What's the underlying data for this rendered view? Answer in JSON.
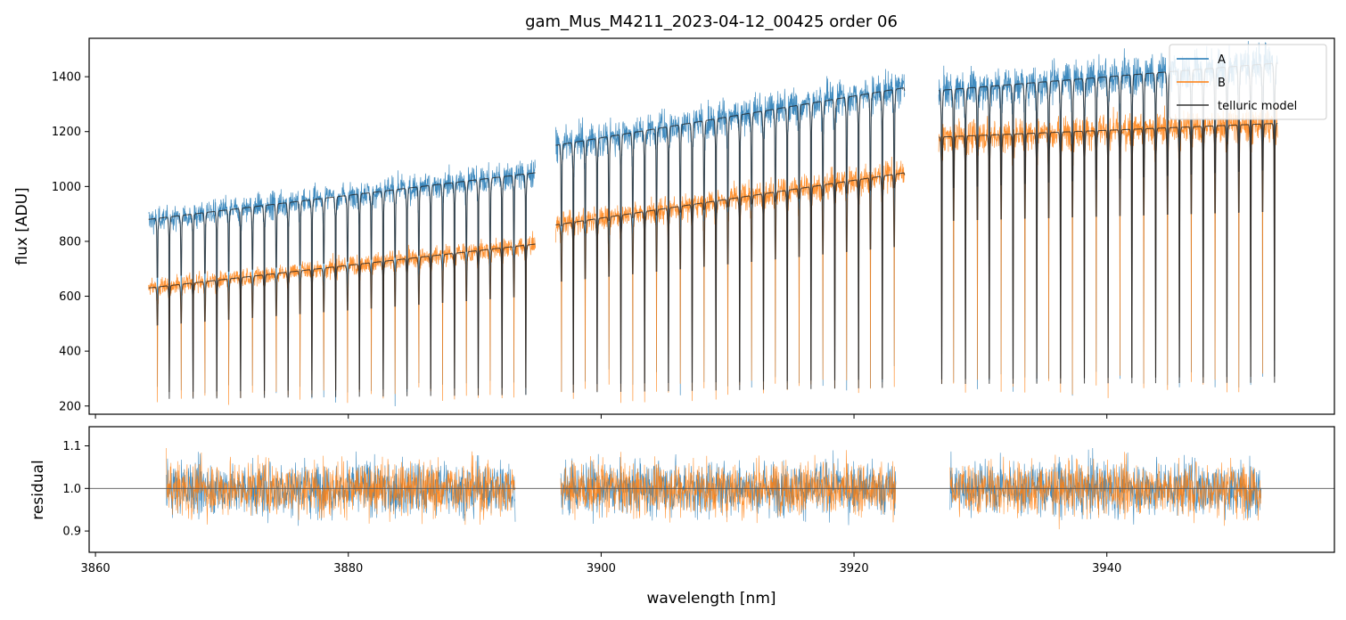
{
  "chart_data": [
    {
      "type": "line",
      "title": "gam_Mus_M4211_2023-04-12_00425  order 06",
      "xlabel": "",
      "ylabel": "flux [ADU]",
      "xlim": [
        3859.5,
        3958.0
      ],
      "ylim": [
        170,
        1540
      ],
      "yticks": [
        200,
        400,
        600,
        800,
        1000,
        1200,
        1400
      ],
      "xticks": [
        3860,
        3880,
        3900,
        3920,
        3940
      ],
      "xtick_labels_shown": false,
      "grid": false,
      "legend": {
        "location": "upper right",
        "entries": [
          "A",
          "B",
          "telluric model"
        ]
      },
      "segments": [
        {
          "x_range": [
            3864.2,
            3894.8
          ],
          "continuum_A": [
            880,
            1050
          ],
          "continuum_B": [
            630,
            790
          ]
        },
        {
          "x_range": [
            3896.4,
            3924.0
          ],
          "continuum_A": [
            1150,
            1360
          ],
          "continuum_B": [
            860,
            1050
          ]
        },
        {
          "x_range": [
            3926.7,
            3953.5
          ],
          "continuum_A": [
            1350,
            1450
          ],
          "continuum_B": [
            1180,
            1230
          ]
        }
      ],
      "absorption_lines": {
        "approx_count": 93,
        "spacing_nm": 0.94,
        "min_depth_flux": 180
      },
      "series": [
        {
          "name": "A",
          "color": "#1f77b4"
        },
        {
          "name": "B",
          "color": "#ff7f0e"
        },
        {
          "name": "telluric model",
          "color": "#000000"
        }
      ]
    },
    {
      "type": "line",
      "title": "",
      "xlabel": "wavelength [nm]",
      "ylabel": "residual",
      "xlim": [
        3859.5,
        3958.0
      ],
      "ylim": [
        0.85,
        1.145
      ],
      "yticks": [
        0.9,
        1.0,
        1.1
      ],
      "ytick_labels": [
        "0.9",
        "1.0",
        "1.1"
      ],
      "xticks": [
        3860,
        3880,
        3900,
        3920,
        3940
      ],
      "xtick_labels": [
        "3860",
        "3880",
        "3900",
        "3920",
        "3940"
      ],
      "reference_line": 1.0,
      "segments": [
        [
          3865.6,
          3893.2
        ],
        [
          3896.8,
          3923.3
        ],
        [
          3927.6,
          3952.2
        ]
      ],
      "noise_sigma": 0.045,
      "series": [
        {
          "name": "A",
          "color": "#1f77b4"
        },
        {
          "name": "B",
          "color": "#ff7f0e"
        }
      ]
    }
  ]
}
